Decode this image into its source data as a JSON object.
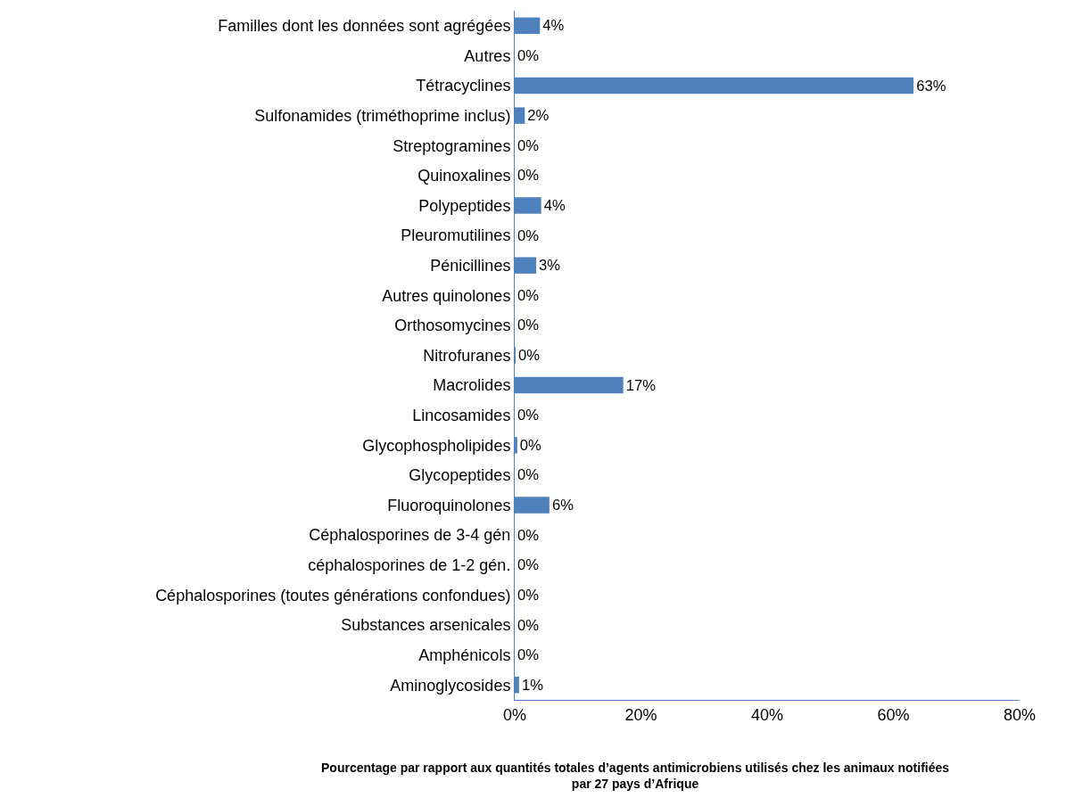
{
  "chart_data": {
    "type": "bar",
    "orientation": "horizontal",
    "xlabel": "Pourcentage par rapport aux quantités totales d’agents antimicrobiens utilisés chez les animaux notifiées par 27 pays d’Afrique",
    "categories": [
      "Familles dont les données sont agrégées",
      "Autres",
      "Tétracyclines",
      "Sulfonamides (triméthoprime inclus)",
      "Streptogramines",
      "Quinoxalines",
      "Polypeptides",
      "Pleuromutilines",
      "Pénicillines",
      "Autres quinolones",
      "Orthosomycines",
      "Nitrofuranes",
      "Macrolides",
      "Lincosamides",
      "Glycophospholipides",
      "Glycopeptides",
      "Fluoroquinolones",
      "Céphalosporines de 3-4 gén",
      "céphalosporines de 1-2 gén.",
      "Céphalosporines (toutes générations confondues)",
      "Substances arsenicales",
      "Amphénicols",
      "Aminoglycosides"
    ],
    "values": [
      4.0,
      0,
      63.2,
      1.6,
      0,
      0,
      4.2,
      0,
      3.4,
      0,
      0,
      0.1,
      17.2,
      0,
      0.4,
      0,
      5.5,
      0,
      0,
      0,
      0,
      0,
      0.7
    ],
    "value_labels": [
      "4%",
      "0%",
      "63%",
      "2%",
      "0%",
      "0%",
      "4%",
      "0%",
      "3%",
      "0%",
      "0%",
      "0%",
      "17%",
      "0%",
      "0%",
      "0%",
      "6%",
      "0%",
      "0%",
      "0%",
      "0%",
      "0%",
      "1%"
    ],
    "color": "#4f81bd",
    "xlim": [
      0,
      80
    ],
    "xticks": [
      {
        "value": 0,
        "label": "0%"
      },
      {
        "value": 20,
        "label": "20%"
      },
      {
        "value": 40,
        "label": "40%"
      },
      {
        "value": 60,
        "label": "60%"
      },
      {
        "value": 80,
        "label": "80%"
      }
    ],
    "legend": false
  }
}
